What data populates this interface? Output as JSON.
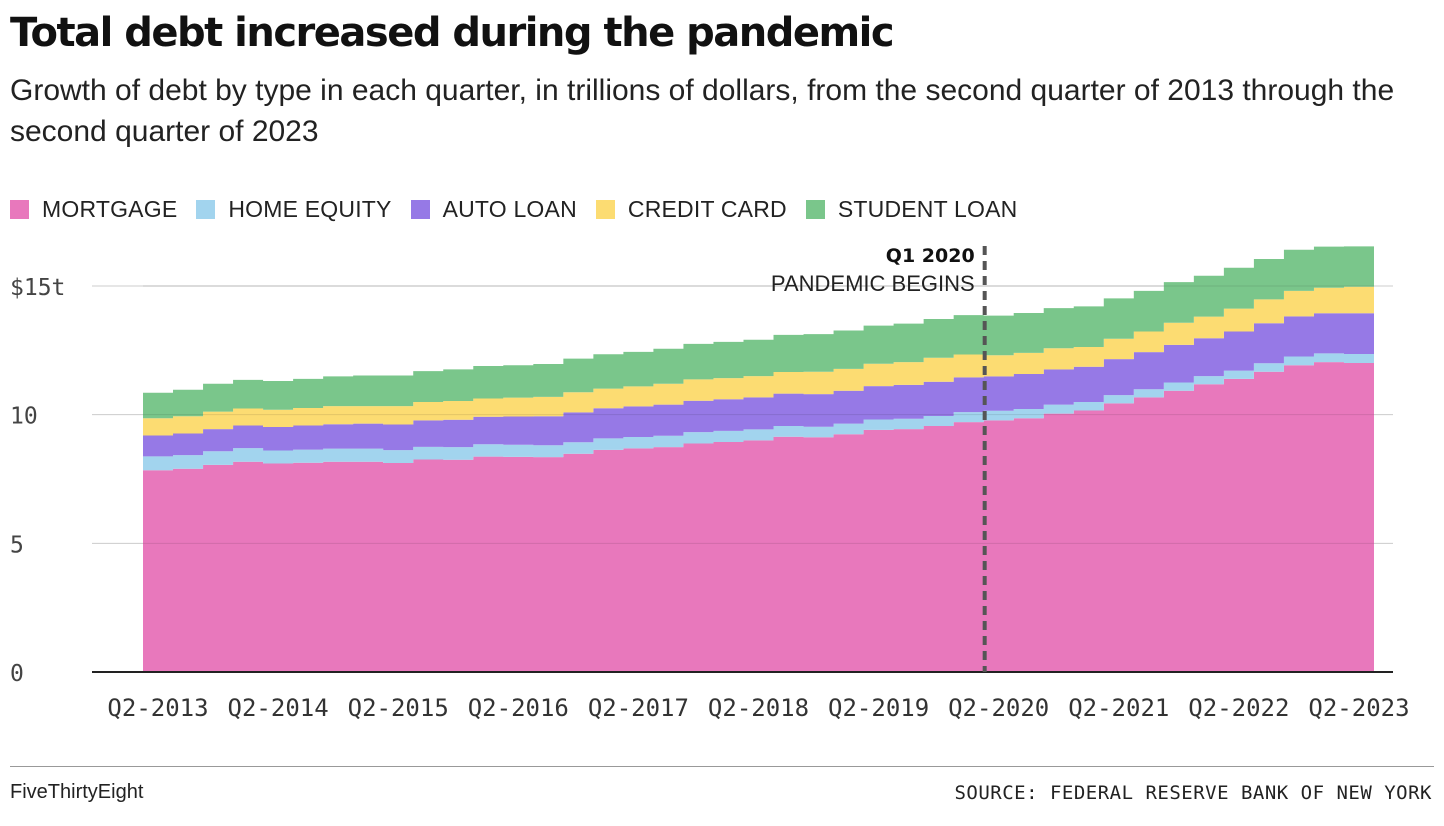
{
  "header": {
    "title": "Total debt increased during the pandemic",
    "subtitle": "Growth of debt by type in each quarter, in trillions of dollars, from the second quarter of 2013 through the second quarter of 2023"
  },
  "legend": {
    "items": [
      {
        "label": "MORTGAGE",
        "color": "#e878bc"
      },
      {
        "label": "HOME EQUITY",
        "color": "#a2d4ee"
      },
      {
        "label": "AUTO LOAN",
        "color": "#9679e6"
      },
      {
        "label": "CREDIT CARD",
        "color": "#fcdc72"
      },
      {
        "label": "STUDENT LOAN",
        "color": "#7ac68b"
      }
    ]
  },
  "chart_data": {
    "type": "area",
    "step": true,
    "stacked": true,
    "x": [
      "Q2-2013",
      "Q3-2013",
      "Q4-2013",
      "Q1-2014",
      "Q2-2014",
      "Q3-2014",
      "Q4-2014",
      "Q1-2015",
      "Q2-2015",
      "Q3-2015",
      "Q4-2015",
      "Q1-2016",
      "Q2-2016",
      "Q3-2016",
      "Q4-2016",
      "Q1-2017",
      "Q2-2017",
      "Q3-2017",
      "Q4-2017",
      "Q1-2018",
      "Q2-2018",
      "Q3-2018",
      "Q4-2018",
      "Q1-2019",
      "Q2-2019",
      "Q3-2019",
      "Q4-2019",
      "Q1-2020",
      "Q2-2020",
      "Q3-2020",
      "Q4-2020",
      "Q1-2021",
      "Q2-2021",
      "Q3-2021",
      "Q4-2021",
      "Q1-2022",
      "Q2-2022",
      "Q3-2022",
      "Q4-2022",
      "Q1-2023",
      "Q2-2023"
    ],
    "series": [
      {
        "name": "MORTGAGE",
        "color": "#e878bc",
        "values": [
          7.84,
          7.9,
          8.05,
          8.17,
          8.1,
          8.13,
          8.17,
          8.17,
          8.12,
          8.26,
          8.25,
          8.37,
          8.36,
          8.35,
          8.48,
          8.63,
          8.69,
          8.74,
          8.88,
          8.94,
          9.0,
          9.14,
          9.12,
          9.24,
          9.41,
          9.44,
          9.56,
          9.71,
          9.78,
          9.86,
          10.04,
          10.16,
          10.44,
          10.67,
          10.93,
          11.18,
          11.39,
          11.67,
          11.92,
          12.04,
          12.01
        ]
      },
      {
        "name": "HOME EQUITY",
        "color": "#a2d4ee",
        "values": [
          0.54,
          0.53,
          0.53,
          0.53,
          0.51,
          0.51,
          0.51,
          0.51,
          0.5,
          0.49,
          0.49,
          0.48,
          0.47,
          0.46,
          0.45,
          0.45,
          0.44,
          0.44,
          0.44,
          0.43,
          0.43,
          0.42,
          0.41,
          0.41,
          0.4,
          0.4,
          0.39,
          0.39,
          0.37,
          0.36,
          0.35,
          0.33,
          0.32,
          0.32,
          0.32,
          0.32,
          0.32,
          0.33,
          0.34,
          0.34,
          0.35
        ]
      },
      {
        "name": "AUTO LOAN",
        "color": "#9679e6",
        "values": [
          0.81,
          0.84,
          0.86,
          0.88,
          0.91,
          0.94,
          0.95,
          0.97,
          1.0,
          1.03,
          1.06,
          1.07,
          1.1,
          1.13,
          1.16,
          1.17,
          1.19,
          1.21,
          1.22,
          1.23,
          1.24,
          1.26,
          1.27,
          1.28,
          1.3,
          1.32,
          1.33,
          1.35,
          1.34,
          1.36,
          1.37,
          1.37,
          1.4,
          1.44,
          1.46,
          1.47,
          1.52,
          1.55,
          1.56,
          1.56,
          1.58
        ]
      },
      {
        "name": "CREDIT CARD",
        "color": "#fcdc72",
        "values": [
          0.67,
          0.67,
          0.68,
          0.66,
          0.67,
          0.68,
          0.7,
          0.68,
          0.71,
          0.71,
          0.73,
          0.71,
          0.73,
          0.75,
          0.78,
          0.76,
          0.78,
          0.81,
          0.83,
          0.82,
          0.83,
          0.84,
          0.87,
          0.85,
          0.87,
          0.88,
          0.93,
          0.89,
          0.82,
          0.82,
          0.82,
          0.77,
          0.79,
          0.8,
          0.86,
          0.84,
          0.89,
          0.93,
          0.99,
          0.99,
          1.03
        ]
      },
      {
        "name": "STUDENT LOAN",
        "color": "#7ac68b",
        "values": [
          0.99,
          1.03,
          1.08,
          1.11,
          1.12,
          1.13,
          1.16,
          1.19,
          1.19,
          1.2,
          1.23,
          1.26,
          1.26,
          1.28,
          1.31,
          1.34,
          1.34,
          1.36,
          1.38,
          1.41,
          1.41,
          1.44,
          1.46,
          1.49,
          1.48,
          1.5,
          1.51,
          1.53,
          1.54,
          1.55,
          1.56,
          1.58,
          1.57,
          1.58,
          1.58,
          1.59,
          1.59,
          1.57,
          1.6,
          1.6,
          1.57
        ]
      }
    ],
    "ylim": [
      0,
      16.5
    ],
    "y_ticks": [
      {
        "value": 0,
        "label": "0"
      },
      {
        "value": 5,
        "label": "5"
      },
      {
        "value": 10,
        "label": "10"
      },
      {
        "value": 15,
        "label": "$15t"
      }
    ],
    "x_tick_labels": [
      "Q2-2013",
      "Q2-2014",
      "Q2-2015",
      "Q2-2016",
      "Q2-2017",
      "Q2-2018",
      "Q2-2019",
      "Q2-2020",
      "Q2-2021",
      "Q2-2022",
      "Q2-2023"
    ],
    "grid": true,
    "legend_position": "top-left",
    "annotation": {
      "x": "Q1-2020",
      "title": "Q1 2020",
      "text": "PANDEMIC BEGINS"
    }
  },
  "footer": {
    "brand": "FiveThirtyEight",
    "source": "SOURCE: FEDERAL RESERVE BANK OF NEW YORK"
  }
}
